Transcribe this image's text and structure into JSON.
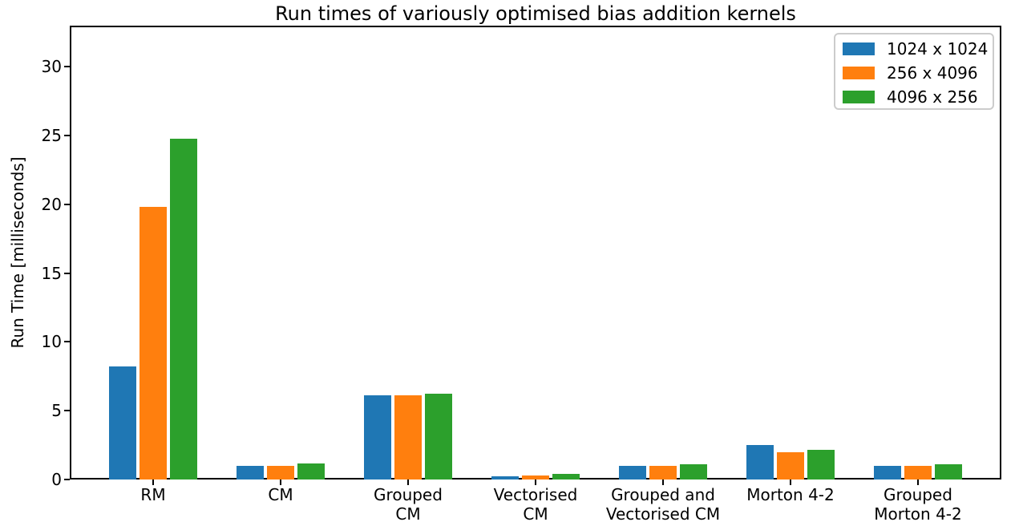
{
  "chart_data": {
    "type": "bar",
    "title": "Run times of variously optimised bias addition kernels",
    "xlabel": "",
    "ylabel": "Run Time [milliseconds]",
    "categories": [
      "RM",
      "CM",
      "Grouped\nCM",
      "Vectorised\nCM",
      "Grouped and\nVectorised CM",
      "Morton 4-2",
      "Grouped\nMorton 4-2"
    ],
    "series": [
      {
        "name": "1024 x 1024",
        "color": "#1f77b4",
        "values": [
          8.2,
          1.0,
          6.1,
          0.25,
          1.0,
          2.5,
          1.0
        ]
      },
      {
        "name": "256 x 4096",
        "color": "#ff7f0e",
        "values": [
          19.8,
          1.0,
          6.1,
          0.3,
          1.0,
          2.0,
          1.0
        ]
      },
      {
        "name": "4096 x 256",
        "color": "#2ca02c",
        "values": [
          24.8,
          1.15,
          6.25,
          0.4,
          1.1,
          2.15,
          1.1
        ]
      }
    ],
    "yticks": [
      0,
      5,
      10,
      15,
      20,
      25,
      30
    ],
    "ylim": [
      0,
      33
    ],
    "grid": false,
    "legend_position": "upper right",
    "spine_color": "#000000",
    "legend_border_color": "#cccccc"
  }
}
